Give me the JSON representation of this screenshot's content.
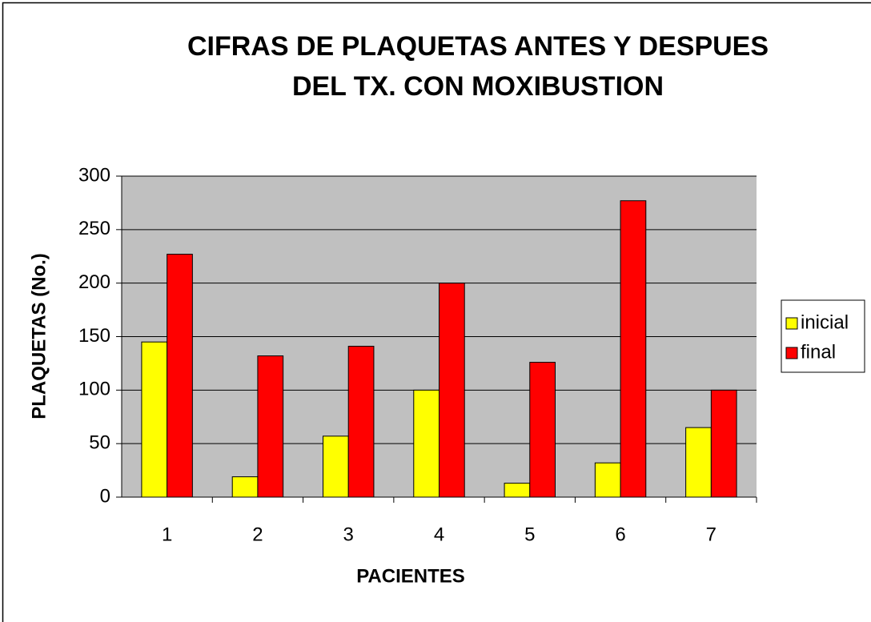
{
  "chart_data": {
    "type": "bar",
    "title": [
      "CIFRAS DE PLAQUETAS ANTES Y DESPUES",
      "DEL TX. CON MOXIBUSTION"
    ],
    "x_label": "PACIENTES",
    "y_label": "PLAQUETAS (No.)",
    "categories": [
      "1",
      "2",
      "3",
      "4",
      "5",
      "6",
      "7"
    ],
    "series": [
      {
        "name": "inicial",
        "color": "#ffff00",
        "values": [
          145,
          19,
          57,
          100,
          13,
          32,
          65
        ]
      },
      {
        "name": "final",
        "color": "#ff0000",
        "values": [
          227,
          132,
          141,
          200,
          126,
          277,
          100
        ]
      }
    ],
    "ylim": [
      0,
      300
    ],
    "yticks": [
      0,
      50,
      100,
      150,
      200,
      250,
      300
    ],
    "grid": true,
    "legend": "right"
  }
}
